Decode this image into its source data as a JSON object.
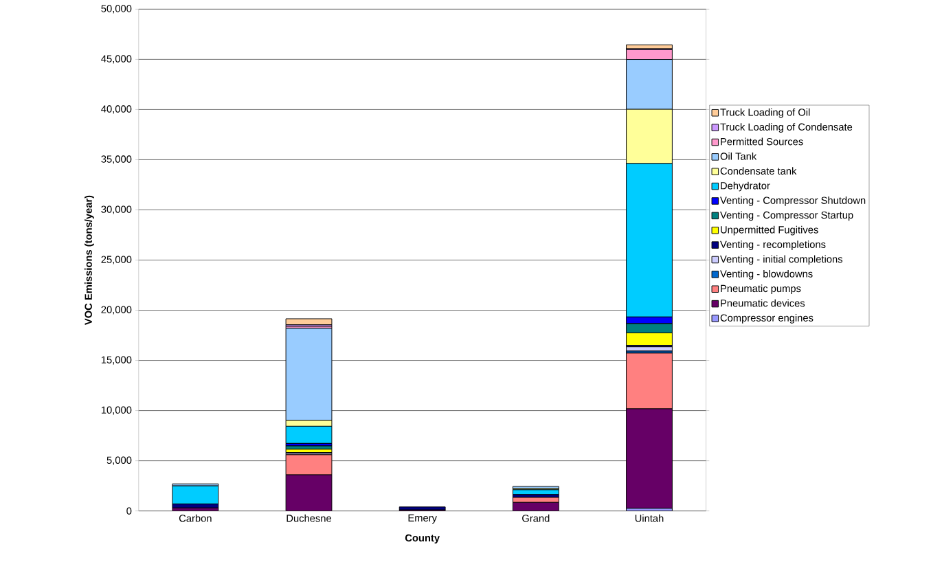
{
  "chart_data": {
    "type": "bar",
    "stacked": true,
    "xlabel": "County",
    "ylabel": "VOC Emissions (tons/year)",
    "categories": [
      "Carbon",
      "Duchesne",
      "Emery",
      "Grand",
      "Uintah"
    ],
    "ylim": [
      0,
      50000
    ],
    "yticks": [
      0,
      {
        "value": 5000,
        "label": "5,000"
      },
      {
        "value": 10000,
        "label": "10,000"
      },
      {
        "value": 15000,
        "label": "15,000"
      },
      {
        "value": 20000,
        "label": "20,000"
      },
      {
        "value": 25000,
        "label": "25,000"
      },
      {
        "value": 30000,
        "label": "30,000"
      },
      {
        "value": 35000,
        "label": "35,000"
      },
      {
        "value": 40000,
        "label": "40,000"
      },
      {
        "value": 45000,
        "label": "45,000"
      },
      {
        "value": 50000,
        "label": "50,000"
      }
    ],
    "grid": "y",
    "legend": "right",
    "series": [
      {
        "name": "Compressor engines",
        "color": "#9999ff",
        "values": [
          0,
          null,
          0,
          0,
          260
        ]
      },
      {
        "name": "Pneumatic devices",
        "color": "#660066",
        "values": [
          300,
          3600,
          100,
          850,
          9920
        ]
      },
      {
        "name": "Pneumatic pumps",
        "color": "#ff8080",
        "values": [
          0,
          2000,
          0,
          500,
          5550
        ]
      },
      {
        "name": "Venting - blowdowns",
        "color": "#0066cc",
        "values": [
          0,
          null,
          0,
          0,
          200
        ]
      },
      {
        "name": "Venting - initial completions",
        "color": "#ccccff",
        "values": [
          0,
          150,
          0,
          0,
          430
        ]
      },
      {
        "name": "Venting - recompletions",
        "color": "#000080",
        "values": [
          400,
          70,
          300,
          280,
          130
        ]
      },
      {
        "name": "Unpermitted Fugitives",
        "color": "#ffff00",
        "values": [
          0,
          330,
          0,
          0,
          1250
        ]
      },
      {
        "name": "Venting - Compressor Startup",
        "color": "#008080",
        "values": [
          0,
          330,
          0,
          0,
          930
        ]
      },
      {
        "name": "Venting - Compressor Shutdown",
        "color": "#0000ff",
        "values": [
          0,
          250,
          0,
          0,
          660
        ]
      },
      {
        "name": "Dehydrator",
        "color": "#00ccff",
        "values": [
          1800,
          1710,
          0,
          480,
          15290
        ]
      },
      {
        "name": "Condensate tank",
        "color": "#ffff99",
        "values": [
          null,
          590,
          0,
          130,
          5400
        ]
      },
      {
        "name": "Oil Tank",
        "color": "#99ccff",
        "values": [
          200,
          9170,
          0,
          200,
          4970
        ]
      },
      {
        "name": "Permitted Sources",
        "color": "#ff99cc",
        "values": [
          0,
          200,
          0,
          0,
          960
        ]
      },
      {
        "name": "Truck Loading of Condensate",
        "color": "#cc99ff",
        "values": [
          0,
          150,
          0,
          0,
          100
        ]
      },
      {
        "name": "Truck Loading of Oil",
        "color": "#ffcc99",
        "values": [
          0,
          600,
          0,
          0,
          400
        ]
      }
    ]
  }
}
